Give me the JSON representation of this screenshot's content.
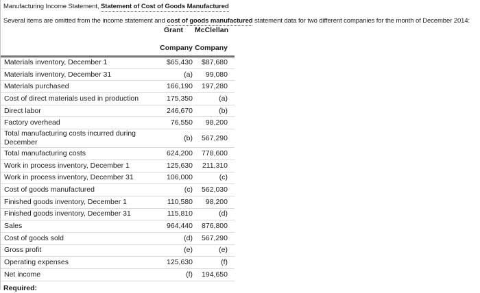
{
  "header": {
    "title_prefix": "Manufacturing Income Statement, ",
    "title_term": "Statement of Cost of Goods Manufactured"
  },
  "intro": {
    "before": "Several items are omitted from the income statement and ",
    "term": "cost of goods manufactured",
    "after": " statement data for two different companies for the month of December 2014:"
  },
  "table": {
    "columns": [
      {
        "company": "Grant",
        "label": "Company"
      },
      {
        "company": "McClellan",
        "label": "Company"
      }
    ],
    "rows": [
      {
        "label": "Materials inventory, December 1",
        "grant": "$65,430",
        "mcclellan": "$87,680"
      },
      {
        "label": "Materials inventory, December 31",
        "grant": "(a)",
        "mcclellan": "99,080"
      },
      {
        "label": "Materials purchased",
        "grant": "166,190",
        "mcclellan": "197,280"
      },
      {
        "label": "Cost of direct materials used in production",
        "grant": "175,350",
        "mcclellan": "(a)"
      },
      {
        "label": "Direct labor",
        "grant": "246,670",
        "mcclellan": "(b)"
      },
      {
        "label": "Factory overhead",
        "grant": "76,550",
        "mcclellan": "98,200"
      },
      {
        "label": "Total manufacturing costs incurred during December",
        "grant": "(b)",
        "mcclellan": "567,290"
      },
      {
        "label": "Total manufacturing costs",
        "grant": "624,200",
        "mcclellan": "778,600"
      },
      {
        "label": "Work in process inventory, December 1",
        "grant": "125,630",
        "mcclellan": "211,310"
      },
      {
        "label": "Work in process inventory, December 31",
        "grant": "106,000",
        "mcclellan": "(c)"
      },
      {
        "label": "Cost of goods manufactured",
        "grant": "(c)",
        "mcclellan": "562,030"
      },
      {
        "label": "Finished goods inventory, December 1",
        "grant": "110,580",
        "mcclellan": "98,200"
      },
      {
        "label": "Finished goods inventory, December 31",
        "grant": "115,810",
        "mcclellan": "(d)"
      },
      {
        "label": "Sales",
        "grant": "964,440",
        "mcclellan": "876,800"
      },
      {
        "label": "Cost of goods sold",
        "grant": "(d)",
        "mcclellan": "567,290"
      },
      {
        "label": "Gross profit",
        "grant": "(e)",
        "mcclellan": "(e)"
      },
      {
        "label": "Operating expenses",
        "grant": "125,630",
        "mcclellan": "(f)"
      },
      {
        "label": "Net income",
        "grant": "(f)",
        "mcclellan": "194,650"
      }
    ]
  },
  "footer": {
    "required_label": "Required:"
  },
  "colors": {
    "text": "#1c1c1c",
    "header_rule": "#757575",
    "row_rule": "#d9d9d9",
    "page_border": "#c4c4c4"
  }
}
